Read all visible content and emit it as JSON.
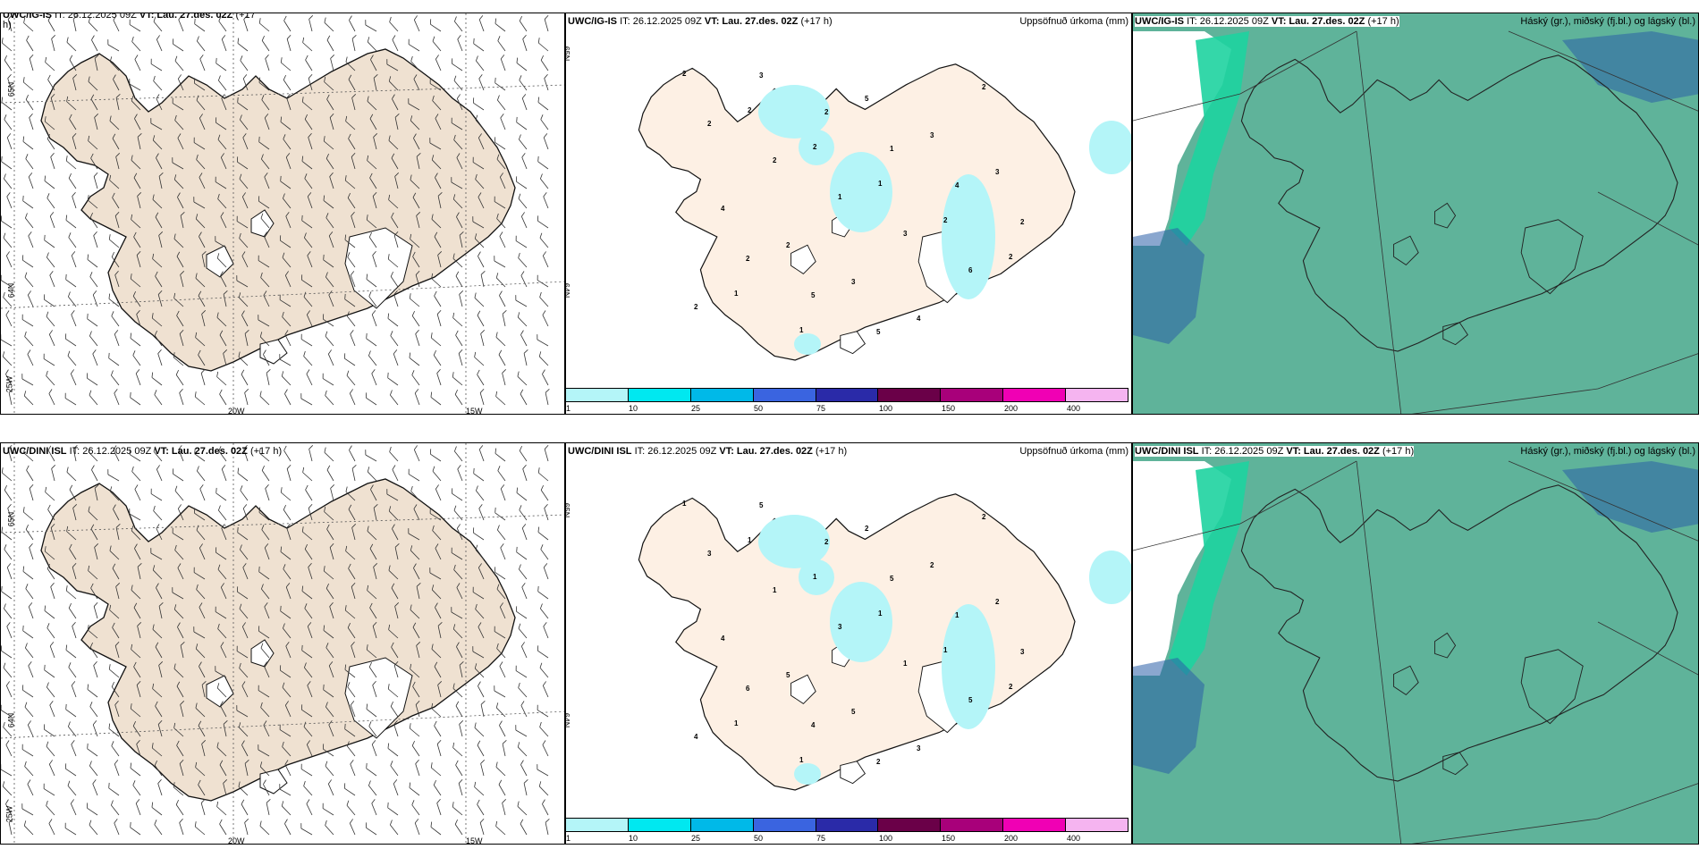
{
  "rows": [
    {
      "model": "UWC/IG-IS",
      "wind_title_model": "UWC/IG-IS",
      "wind_title_rest": "IT: 26.12.2025 09Z",
      "wind_title_vt": "VT: Lau. 27.des. 02Z",
      "wind_title_lead": "(+17",
      "wind_title_lead2": "h)",
      "precip_rest": "IT: 26.12.2025 09Z",
      "precip_vt": "VT: Lau. 27.des. 02Z",
      "precip_lead": "(+17 h)",
      "precip_label": "Uppsöfnuð úrkoma (mm)",
      "cloud_rest": "IT: 26.12.2025 09Z",
      "cloud_vt": "VT: Lau. 27.des. 02Z",
      "cloud_lead": "(+17 h)",
      "cloud_label": "Háský (gr.), miðský (fj.bl.) og lágský (bl.)"
    },
    {
      "model": "UWC/DINI ISL",
      "wind_title_model": "UWC/DINI ISL",
      "wind_title_rest": "IT: 26.12.2025 09Z",
      "wind_title_vt": "VT: Lau. 27.des. 02Z",
      "wind_title_lead": "(+17 h)",
      "wind_title_lead2": "",
      "precip_rest": "IT: 26.12.2025 09Z",
      "precip_vt": "VT: Lau. 27.des. 02Z",
      "precip_lead": "(+17 h)",
      "precip_label": "Uppsöfnuð úrkoma (mm)",
      "cloud_rest": "IT: 26.12.2025 09Z",
      "cloud_vt": "VT: Lau. 27.des. 02Z",
      "cloud_lead": "(+17 h)",
      "cloud_label": "Háský (gr.), miðský (fj.bl.) og lágský (bl.)"
    }
  ],
  "axis_labels": {
    "lat_top": "65N",
    "lat_bottom": "64N",
    "lon_left": "20W",
    "lon_right": "15W",
    "lon_edge": "25W"
  },
  "legend": {
    "ticks": [
      "1",
      "10",
      "25",
      "50",
      "75",
      "100",
      "150",
      "200",
      "400"
    ],
    "colors": [
      "#b4f5f8",
      "#00e8f0",
      "#00b9e8",
      "#3a64e0",
      "#2a2aa8",
      "#6a0048",
      "#a8007a",
      "#f000b4",
      "#f5b4f0"
    ]
  },
  "colors": {
    "land": "#efe1d1",
    "land_precip": "#fdf0e4",
    "precip_light": "#b4f5f8",
    "cloud_low": "#5fb39a",
    "cloud_mid": "#1ed3a0",
    "cloud_high": "#2a5fa8"
  },
  "precip_values_row1": [
    "2",
    "2",
    "2",
    "1",
    "2",
    "2",
    "1",
    "1",
    "5",
    "3",
    "3",
    "4",
    "2",
    "3",
    "4",
    "2",
    "2",
    "2",
    "1",
    "3",
    "6",
    "2",
    "3",
    "2",
    "1",
    "4",
    "2",
    "2",
    "5",
    "5"
  ],
  "precip_values_row2": [
    "1",
    "1",
    "1",
    "1",
    "1",
    "2",
    "1",
    "1",
    "2",
    "2",
    "2",
    "4",
    "5",
    "5",
    "3",
    "2",
    "3",
    "1",
    "3",
    "1",
    "5",
    "4",
    "5",
    "2",
    "5",
    "1",
    "3",
    "6",
    "4",
    "2"
  ]
}
